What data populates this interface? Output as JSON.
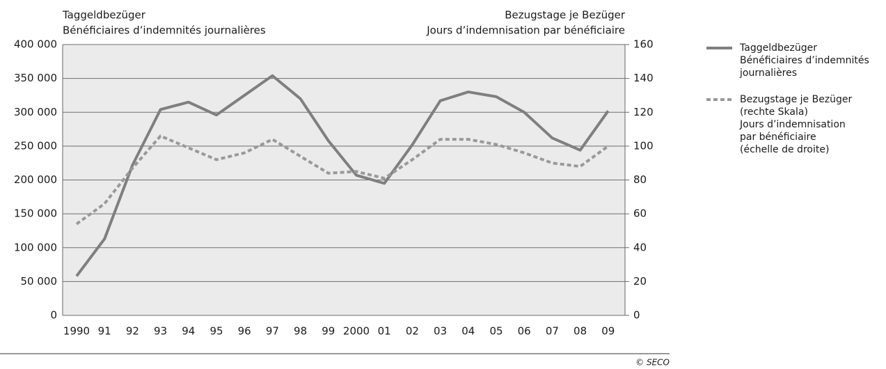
{
  "chart_data": {
    "type": "line",
    "ylabel": [
      "Taggeldbezüger",
      "Bénéficiaires d’indemnités journalières"
    ],
    "y2label": [
      "Bezugstage je Bezüger",
      "Jours d’indemnisation par bénéficiaire"
    ],
    "categories": [
      "1990",
      "91",
      "92",
      "93",
      "94",
      "95",
      "96",
      "97",
      "98",
      "99",
      "2000",
      "01",
      "02",
      "03",
      "04",
      "05",
      "06",
      "07",
      "08",
      "09"
    ],
    "series": [
      {
        "name": "Taggeldbezüger\nBénéficiaires d’indemnités\njournalières",
        "color": "#7f7f7f",
        "dashed": false,
        "values": [
          58000,
          113000,
          222000,
          304000,
          315000,
          296000,
          325000,
          354000,
          320000,
          258000,
          207000,
          195000,
          252000,
          317000,
          330000,
          323000,
          300000,
          262000,
          244000,
          302000
        ]
      },
      {
        "name": "Bezugstage je Bezüger\n(rechte Skala)\nJours d’indemnisation\npar bénéficiaire\n(échelle de droite)",
        "color": "#999999",
        "dashed": true,
        "axis": "y2",
        "values": [
          54,
          66,
          87,
          106,
          99,
          92,
          96,
          104,
          94,
          84,
          85,
          81,
          92,
          104,
          104,
          101,
          96,
          90,
          88,
          100
        ]
      }
    ],
    "ylim": [
      0,
      400000
    ],
    "yticks": [
      0,
      {
        "value": 50000,
        "label": "50 000"
      },
      {
        "value": 100000,
        "label": "100 000"
      },
      {
        "value": 150000,
        "label": "150 000"
      },
      {
        "value": 200000,
        "label": "200 000"
      },
      {
        "value": 250000,
        "label": "250 000"
      },
      {
        "value": 300000,
        "label": "300 000"
      },
      {
        "value": 350000,
        "label": "350 000"
      },
      {
        "value": 400000,
        "label": "400 000"
      }
    ],
    "y2lim": [
      0,
      160
    ],
    "y2ticks": [
      0,
      20,
      40,
      60,
      80,
      100,
      120,
      140,
      160
    ],
    "grid": true,
    "source": "© SECO"
  }
}
